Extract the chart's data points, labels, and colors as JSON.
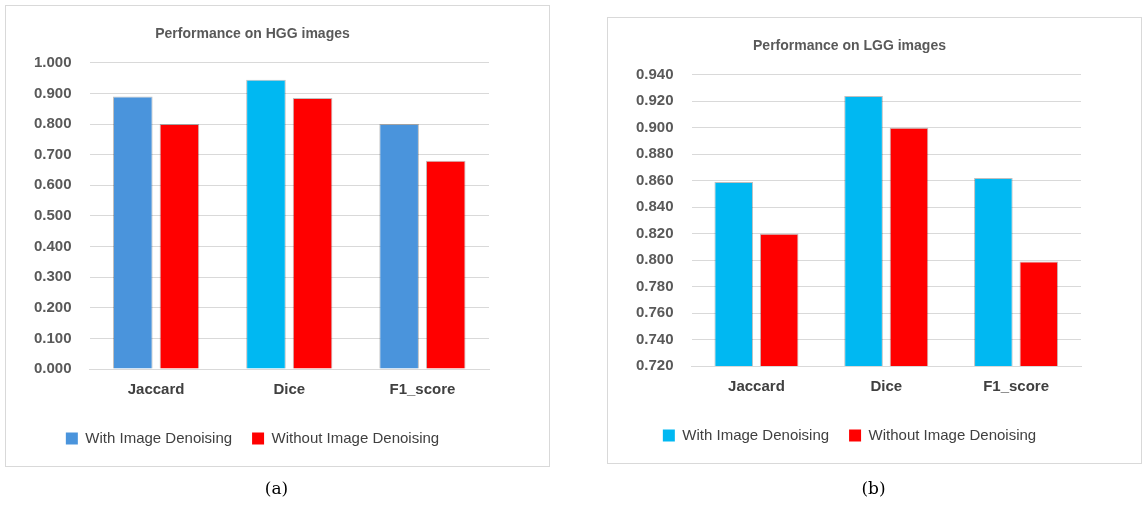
{
  "chart_data": [
    {
      "type": "bar",
      "title": "Performance on HGG images",
      "categories": [
        "Jaccard",
        "Dice",
        "F1_score"
      ],
      "series": [
        {
          "name": "With Image Denoising",
          "color": "#4a94dc",
          "colors": [
            "#4a94dc",
            "#00b8f2",
            "#4a94dc"
          ],
          "values": [
            0.89,
            0.945,
            0.8
          ]
        },
        {
          "name": "Without Image Denoising",
          "color": "#ff0000",
          "values": [
            0.8,
            0.885,
            0.68
          ]
        }
      ],
      "ylim": [
        0,
        1
      ],
      "yticks": [
        {
          "value": 0,
          "label": "0.000"
        },
        {
          "value": 0.1,
          "label": "0.100"
        },
        {
          "value": 0.2,
          "label": "0.200"
        },
        {
          "value": 0.3,
          "label": "0.300"
        },
        {
          "value": 0.4,
          "label": "0.400"
        },
        {
          "value": 0.5,
          "label": "0.500"
        },
        {
          "value": 0.6,
          "label": "0.600"
        },
        {
          "value": 0.7,
          "label": "0.700"
        },
        {
          "value": 0.8,
          "label": "0.800"
        },
        {
          "value": 0.9,
          "label": "0.900"
        },
        {
          "value": 1,
          "label": "1.000"
        }
      ],
      "grid": "y",
      "legend": "bottom",
      "annotations": [
        "(a)"
      ]
    },
    {
      "type": "bar",
      "title": "Performance on LGG images",
      "categories": [
        "Jaccard",
        "Dice",
        "F1_score"
      ],
      "series": [
        {
          "name": "With Image Denoising",
          "color": "#00b8f2",
          "values": [
            0.859,
            0.924,
            0.862
          ]
        },
        {
          "name": "Without Image Denoising",
          "color": "#ff0000",
          "values": [
            0.82,
            0.9,
            0.799
          ]
        }
      ],
      "ylim": [
        0.72,
        0.94
      ],
      "yticks": [
        {
          "value": 0.72,
          "label": "0.720"
        },
        {
          "value": 0.74,
          "label": "0.740"
        },
        {
          "value": 0.76,
          "label": "0.760"
        },
        {
          "value": 0.78,
          "label": "0.780"
        },
        {
          "value": 0.8,
          "label": "0.800"
        },
        {
          "value": 0.82,
          "label": "0.820"
        },
        {
          "value": 0.84,
          "label": "0.840"
        },
        {
          "value": 0.86,
          "label": "0.860"
        },
        {
          "value": 0.88,
          "label": "0.880"
        },
        {
          "value": 0.9,
          "label": "0.900"
        },
        {
          "value": 0.92,
          "label": "0.920"
        },
        {
          "value": 0.94,
          "label": "0.940"
        }
      ],
      "grid": "y",
      "legend": "bottom",
      "annotations": [
        "(b)"
      ]
    }
  ]
}
